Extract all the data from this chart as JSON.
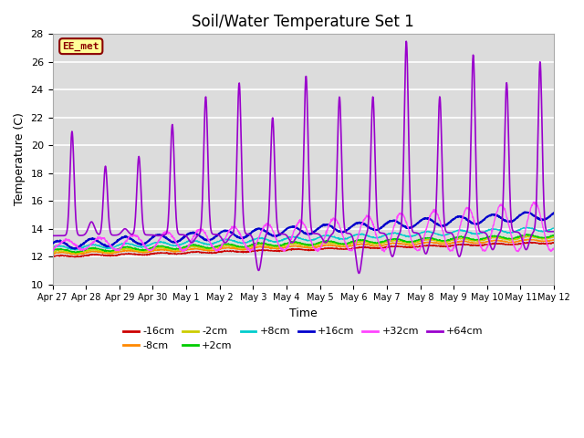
{
  "title": "Soil/Water Temperature Set 1",
  "xlabel": "Time",
  "ylabel": "Temperature (C)",
  "ylim": [
    10,
    28
  ],
  "yticks": [
    10,
    12,
    14,
    16,
    18,
    20,
    22,
    24,
    26,
    28
  ],
  "background_color": "#ffffff",
  "plot_bg_color": "#dcdcdc",
  "annotation_text": "EE_met",
  "annotation_bg": "#ffff99",
  "annotation_border": "#8B0000",
  "annotation_text_color": "#8B0000",
  "series_colors": {
    "-16cm": "#cc0000",
    "-8cm": "#ff8800",
    "-2cm": "#cccc00",
    "+2cm": "#00cc00",
    "+8cm": "#00cccc",
    "+16cm": "#0000cc",
    "+32cm": "#ff44ff",
    "+64cm": "#9900cc"
  },
  "x_tick_labels": [
    "Apr 27",
    "Apr 28",
    "Apr 29",
    "Apr 30",
    "May 1",
    "May 2",
    "May 3",
    "May 4",
    "May 5",
    "May 6",
    "May 7",
    "May 8",
    "May 9",
    "May 10",
    "May 11",
    "May 12"
  ],
  "legend_row1": [
    "-16cm",
    "-8cm",
    "-2cm",
    "+2cm",
    "+8cm",
    "+16cm"
  ],
  "legend_row2": [
    "+32cm",
    "+64cm"
  ]
}
